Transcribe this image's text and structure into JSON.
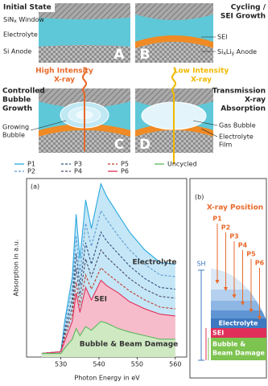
{
  "diagram": {
    "A": {
      "letter": "A",
      "title": [
        "Initial State"
      ],
      "window": [
        "SiN",
        "x",
        " Window"
      ],
      "electrolyte": "Electrolyte",
      "anode": "Si Anode"
    },
    "B": {
      "letter": "B",
      "title": [
        "Cycling /",
        "SEI Growth"
      ],
      "sei": "SEI",
      "anode": [
        "Si",
        "x",
        "Li",
        "y",
        " Anode"
      ]
    },
    "high_xray": [
      "High Intensity",
      "X-ray"
    ],
    "low_xray": [
      "Low Intensity",
      "X-ray"
    ],
    "C": {
      "letter": "C",
      "title": [
        "Controlled",
        "Bubble",
        "Growth"
      ],
      "bubble": [
        "Growing",
        "Bubble"
      ]
    },
    "D": {
      "letter": "D",
      "title": [
        "Transmission",
        "X-ray",
        "Absorption"
      ],
      "bubble": "Gas Bubble",
      "film": [
        "Electrolyte",
        "Film"
      ]
    }
  },
  "chart_data": {
    "type": "line",
    "panel_label": "(a)",
    "x_label": "Photon Energy in eV",
    "y_label": "Absorption in a.u.",
    "x": [
      525,
      530,
      531,
      533,
      534,
      535,
      536.5,
      538,
      540.5,
      542,
      545,
      548,
      552,
      556,
      560
    ],
    "xlim": [
      521,
      563
    ],
    "xticks": [
      530,
      540,
      550,
      560
    ],
    "ylim": [
      0,
      1
    ],
    "series": [
      {
        "name": "P1",
        "color": "#29a8e0",
        "style": "solid",
        "values": [
          0.02,
          0.03,
          0.2,
          0.45,
          0.8,
          0.55,
          0.88,
          0.72,
          0.97,
          0.9,
          0.8,
          0.7,
          0.6,
          0.53,
          0.52
        ]
      },
      {
        "name": "P2",
        "color": "#5b9bd5",
        "style": "dashed",
        "values": [
          0.02,
          0.03,
          0.18,
          0.39,
          0.68,
          0.47,
          0.75,
          0.62,
          0.82,
          0.77,
          0.68,
          0.6,
          0.52,
          0.46,
          0.45
        ]
      },
      {
        "name": "P3",
        "color": "#2f4f7f",
        "style": "dashed",
        "values": [
          0.02,
          0.03,
          0.15,
          0.33,
          0.58,
          0.4,
          0.64,
          0.52,
          0.7,
          0.65,
          0.58,
          0.51,
          0.44,
          0.39,
          0.38
        ]
      },
      {
        "name": "P4",
        "color": "#4a4a6a",
        "style": "dashed",
        "values": [
          0.02,
          0.03,
          0.13,
          0.28,
          0.5,
          0.34,
          0.55,
          0.45,
          0.6,
          0.56,
          0.5,
          0.44,
          0.38,
          0.34,
          0.33
        ]
      },
      {
        "name": "P5",
        "color": "#c0392b",
        "style": "dashed",
        "values": [
          0.02,
          0.03,
          0.11,
          0.24,
          0.42,
          0.29,
          0.46,
          0.38,
          0.5,
          0.47,
          0.42,
          0.37,
          0.32,
          0.28,
          0.27
        ]
      },
      {
        "name": "P6",
        "color": "#e0305a",
        "style": "solid",
        "values": [
          0.02,
          0.03,
          0.09,
          0.2,
          0.36,
          0.25,
          0.39,
          0.32,
          0.43,
          0.4,
          0.36,
          0.31,
          0.27,
          0.24,
          0.23
        ]
      },
      {
        "name": "Uncycled",
        "color": "#5cb85c",
        "style": "solid",
        "values": [
          0.02,
          0.02,
          0.05,
          0.1,
          0.16,
          0.12,
          0.17,
          0.15,
          0.2,
          0.19,
          0.16,
          0.14,
          0.12,
          0.1,
          0.1
        ]
      }
    ],
    "fills": [
      {
        "series": 0,
        "color": "#c5e6f6"
      },
      {
        "series": 5,
        "color": "#f7bccb"
      },
      {
        "series": 6,
        "color": "#cfe9c2"
      }
    ],
    "annotations": [
      "Electrolyte",
      "SEI",
      "Bubble & Beam Damage"
    ]
  },
  "panel_b": {
    "label": "(b)",
    "xray_position": "X-ray Position",
    "positions": [
      "P1",
      "P2",
      "P3",
      "P4",
      "P5",
      "P6"
    ],
    "sh": "SH",
    "layers": [
      "Electrolyte",
      "SEI",
      "Bubble &",
      "Beam Damage"
    ]
  }
}
